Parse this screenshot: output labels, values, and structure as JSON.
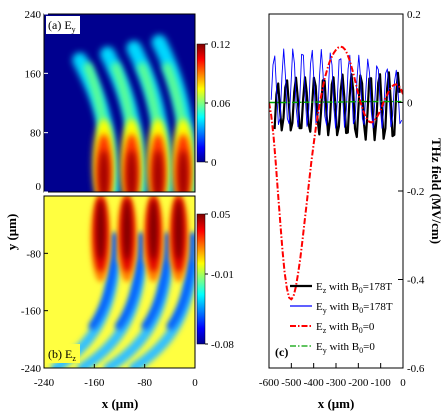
{
  "chart_data": [
    {
      "type": "heatmap",
      "panel_label": "(a) E",
      "panel_label_sub": "y",
      "xlim": [
        -240,
        0
      ],
      "ylim": [
        0,
        240
      ],
      "y_ticks": [
        "240",
        "160",
        "80",
        "0"
      ],
      "ylabel": "y (μm)",
      "colorbar": {
        "ticks": [
          "0.12",
          "0.06",
          "0"
        ],
        "range": [
          0,
          0.12
        ]
      },
      "colormap": [
        "#00008f",
        "#0000ff",
        "#00ffff",
        "#ffff00",
        "#ff0000",
        "#800000"
      ],
      "background_color": "#00008f",
      "fringes": [
        {
          "x_center": -148,
          "peak_y": 28,
          "peak_value": 0.12
        },
        {
          "x_center": -104,
          "peak_y": 36,
          "peak_value": 0.12
        },
        {
          "x_center": -62,
          "peak_y": 44,
          "peak_value": 0.12
        },
        {
          "x_center": -22,
          "peak_y": 52,
          "peak_value": 0.12
        }
      ]
    },
    {
      "type": "heatmap",
      "panel_label": "(b) E",
      "panel_label_sub": "z",
      "xlim": [
        -240,
        0
      ],
      "ylim": [
        -240,
        0
      ],
      "x_ticks": [
        "-240",
        "-160",
        "-80",
        "0"
      ],
      "y_ticks": [
        "-80",
        "-160",
        "-240"
      ],
      "xlabel": "x (μm)",
      "colorbar": {
        "ticks": [
          "0.05",
          "-0.01",
          "-0.08"
        ],
        "range": [
          -0.08,
          0.05
        ]
      },
      "colormap": [
        "#00008f",
        "#0000ff",
        "#00ffff",
        "#ffff00",
        "#ff0000",
        "#800000"
      ],
      "background_color": "#ffff40",
      "fringes": [
        {
          "x_center": -150,
          "peak_value": 0.05
        },
        {
          "x_center": -108,
          "peak_value": 0.05
        },
        {
          "x_center": -66,
          "peak_value": 0.05
        },
        {
          "x_center": -26,
          "peak_value": 0.05
        }
      ]
    },
    {
      "type": "line",
      "panel_label": "(c)",
      "xlabel": "x (μm)",
      "ylabel": "THz field (MV/cm)",
      "xlim": [
        -600,
        0
      ],
      "ylim": [
        -0.6,
        0.2
      ],
      "x_ticks": [
        "-600",
        "-500",
        "-400",
        "-300",
        "-200",
        "-100",
        "0"
      ],
      "y_ticks": [
        "0.2",
        "0",
        "-0.2",
        "-0.4",
        "-0.6"
      ],
      "grid": false,
      "legend_position": "bottom-right",
      "series": [
        {
          "name": "E",
          "name_sub": "z",
          "name_rest": " with B",
          "name_sub2": "0",
          "name_end": "=178T",
          "color": "#000000",
          "style": "solid",
          "x": [
            -575,
            -567,
            -559,
            -551,
            -543,
            -535,
            -527,
            -519,
            -511,
            -503,
            -495,
            -487,
            -479,
            -471,
            -463,
            -455,
            -447,
            -439,
            -431,
            -423,
            -415,
            -407,
            -399,
            -391,
            -383,
            -375,
            -367,
            -359,
            -351,
            -343,
            -335,
            -327,
            -319,
            -311,
            -303,
            -295,
            -287,
            -279,
            -271,
            -263,
            -255,
            -247,
            -239,
            -231,
            -223,
            -215,
            -207,
            -199,
            -191,
            -183,
            -175,
            -167,
            -159,
            -151,
            -143,
            -135,
            -127,
            -119,
            -111,
            -103,
            -95,
            -87,
            -79,
            -71,
            -63,
            -55,
            -47,
            -39,
            -31,
            -23,
            -15
          ],
          "y": [
            -0.06,
            0.018,
            0.043,
            -0.014,
            -0.063,
            -0.035,
            0.034,
            0.05,
            -0.004,
            -0.063,
            -0.046,
            0.023,
            0.056,
            0.009,
            -0.058,
            -0.058,
            0.009,
            0.057,
            0.023,
            -0.048,
            -0.066,
            -0.006,
            0.056,
            0.037,
            -0.036,
            -0.072,
            -0.022,
            0.05,
            0.049,
            -0.021,
            -0.074,
            -0.039,
            0.041,
            0.057,
            -0.005,
            -0.074,
            -0.054,
            0.027,
            0.063,
            0.012,
            -0.069,
            -0.068,
            0.012,
            0.064,
            0.028,
            -0.059,
            -0.078,
            -0.006,
            0.061,
            0.043,
            -0.046,
            -0.084,
            -0.024,
            0.054,
            0.055,
            -0.029,
            -0.085,
            -0.041,
            0.044,
            0.064,
            -0.011,
            -0.082,
            -0.058,
            0.031,
            0.068,
            0.006,
            -0.076,
            -0.073,
            0.016,
            0.067,
            0.022
          ]
        },
        {
          "name": "E",
          "name_sub": "y",
          "name_rest": " with B",
          "name_sub2": "0",
          "name_end": "=178T",
          "color": "#0000ff",
          "style": "thin",
          "x": [
            -590,
            -582,
            -574,
            -566,
            -558,
            -550,
            -542,
            -534,
            -526,
            -518,
            -510,
            -502,
            -494,
            -486,
            -478,
            -470,
            -462,
            -454,
            -446,
            -438,
            -430,
            -422,
            -414,
            -406,
            -398,
            -390,
            -382,
            -374,
            -366,
            -358,
            -350,
            -342,
            -334,
            -326,
            -318,
            -310,
            -302,
            -294,
            -286,
            -278,
            -270,
            -262,
            -254,
            -246,
            -238,
            -230,
            -222,
            -214,
            -206,
            -198,
            -190,
            -182,
            -174,
            -166,
            -158,
            -150,
            -142,
            -134,
            -126,
            -118,
            -110,
            -102,
            -94,
            -86,
            -78,
            -70,
            -62,
            -54,
            -46,
            -38,
            -30,
            -22,
            -14,
            -6
          ],
          "y": [
            0.006,
            0.085,
            0.105,
            0.027,
            -0.05,
            -0.034,
            0.062,
            0.121,
            0.058,
            -0.036,
            -0.048,
            0.036,
            0.121,
            0.087,
            -0.012,
            -0.055,
            0.009,
            0.109,
            0.107,
            0.015,
            -0.054,
            -0.015,
            0.087,
            0.118,
            0.042,
            -0.046,
            -0.036,
            0.059,
            0.12,
            0.067,
            -0.031,
            -0.051,
            0.031,
            0.112,
            0.085,
            -0.01,
            -0.058,
            0.006,
            0.096,
            0.099,
            0.013,
            -0.056,
            -0.017,
            0.076,
            0.107,
            0.035,
            -0.048,
            -0.036,
            0.053,
            0.107,
            0.054,
            -0.037,
            -0.05,
            0.029,
            0.098,
            0.067,
            -0.021,
            -0.057,
            0.006,
            0.083,
            0.074,
            -0.005,
            -0.058,
            -0.014,
            0.066,
            0.076,
            0.01,
            -0.055,
            -0.03,
            0.047,
            0.073,
            0.023,
            -0.048,
            -0.04
          ]
        },
        {
          "name": "E",
          "name_sub": "z",
          "name_rest": " with B",
          "name_sub2": "0",
          "name_end": "=0",
          "color": "#ff0000",
          "style": "dashdot",
          "x": [
            -600,
            -590,
            -580,
            -570,
            -560,
            -550,
            -540,
            -530,
            -520,
            -510,
            -500,
            -490,
            -480,
            -470,
            -460,
            -450,
            -440,
            -430,
            -420,
            -410,
            -400,
            -390,
            -380,
            -370,
            -360,
            -350,
            -340,
            -330,
            -320,
            -310,
            -300,
            -290,
            -280,
            -270,
            -260,
            -250,
            -240,
            -230,
            -220,
            -210,
            -200,
            -190,
            -180,
            -170,
            -160,
            -150,
            -140,
            -130,
            -120,
            -110,
            -100,
            -90,
            -80,
            -70,
            -60,
            -50,
            -40,
            -30,
            -20,
            -10,
            0
          ],
          "y": [
            0.0,
            -0.029,
            -0.075,
            -0.135,
            -0.202,
            -0.269,
            -0.332,
            -0.384,
            -0.42,
            -0.441,
            -0.445,
            -0.437,
            -0.417,
            -0.388,
            -0.352,
            -0.311,
            -0.267,
            -0.222,
            -0.177,
            -0.133,
            -0.093,
            -0.056,
            -0.024,
            0.006,
            0.032,
            0.055,
            0.074,
            0.09,
            0.102,
            0.112,
            0.119,
            0.124,
            0.126,
            0.125,
            0.12,
            0.11,
            0.097,
            0.08,
            0.061,
            0.04,
            0.02,
            -0.0,
            -0.016,
            -0.029,
            -0.039,
            -0.044,
            -0.045,
            -0.042,
            -0.036,
            -0.027,
            -0.016,
            -0.004,
            0.008,
            0.019,
            0.029,
            0.036,
            0.04,
            0.041,
            0.038,
            0.031,
            0.019
          ]
        },
        {
          "name": "E",
          "name_sub": "y",
          "name_rest": " with B",
          "name_sub2": "0",
          "name_end": "=0",
          "color": "#00a000",
          "style": "dashdot",
          "x": [
            -600,
            -500,
            -400,
            -300,
            -200,
            -100,
            0
          ],
          "y": [
            0.0,
            0.0,
            0.001,
            0.001,
            0.002,
            0.002,
            0.002
          ]
        }
      ]
    }
  ]
}
